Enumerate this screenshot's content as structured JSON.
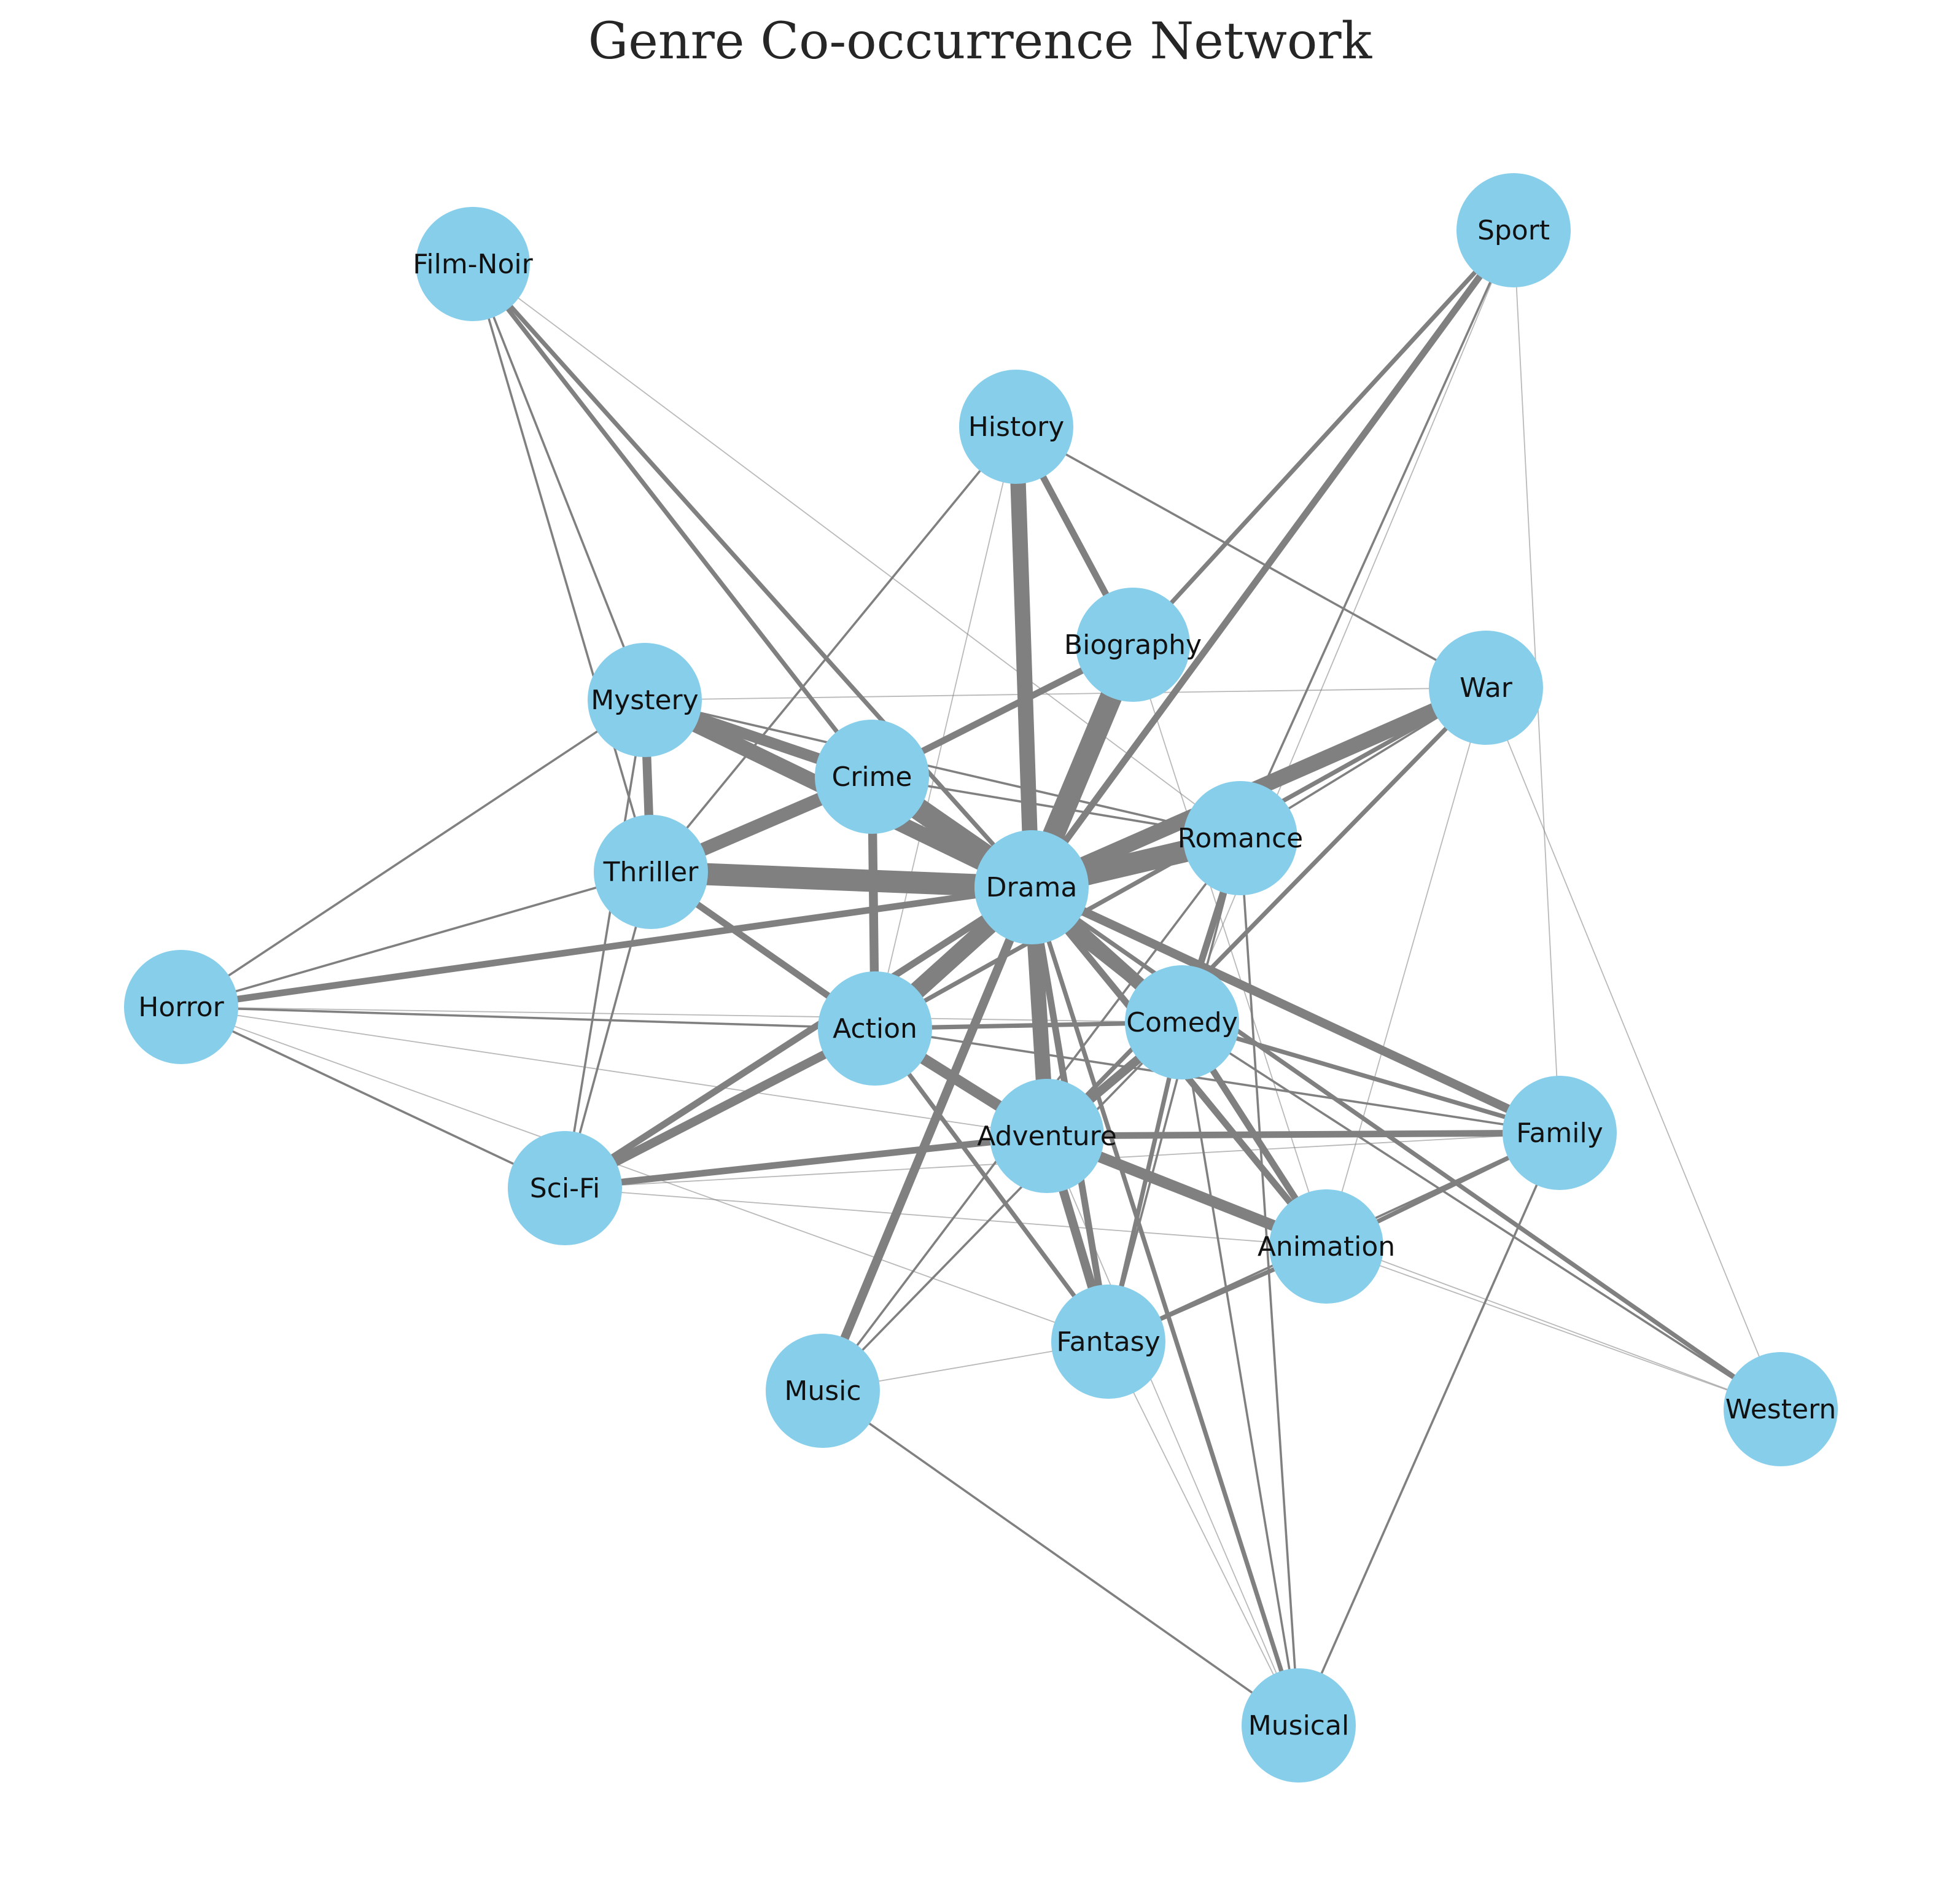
{
  "title": "Genre Co-occurrence Network",
  "colors": {
    "node_fill": "#87ceeb",
    "edge_stroke": "#808080",
    "background": "#ffffff"
  },
  "nodes": [
    {
      "id": "Film-Noir",
      "label": "Film-Noir"
    },
    {
      "id": "Sport",
      "label": "Sport"
    },
    {
      "id": "History",
      "label": "History"
    },
    {
      "id": "Biography",
      "label": "Biography"
    },
    {
      "id": "War",
      "label": "War"
    },
    {
      "id": "Mystery",
      "label": "Mystery"
    },
    {
      "id": "Crime",
      "label": "Crime"
    },
    {
      "id": "Romance",
      "label": "Romance"
    },
    {
      "id": "Thriller",
      "label": "Thriller"
    },
    {
      "id": "Drama",
      "label": "Drama"
    },
    {
      "id": "Horror",
      "label": "Horror"
    },
    {
      "id": "Action",
      "label": "Action"
    },
    {
      "id": "Comedy",
      "label": "Comedy"
    },
    {
      "id": "Family",
      "label": "Family"
    },
    {
      "id": "Adventure",
      "label": "Adventure"
    },
    {
      "id": "Sci-Fi",
      "label": "Sci-Fi"
    },
    {
      "id": "Animation",
      "label": "Animation"
    },
    {
      "id": "Fantasy",
      "label": "Fantasy"
    },
    {
      "id": "Music",
      "label": "Music"
    },
    {
      "id": "Western",
      "label": "Western"
    },
    {
      "id": "Musical",
      "label": "Musical"
    }
  ],
  "edges": [
    {
      "source": "Drama",
      "target": "Romance",
      "weight": 10
    },
    {
      "source": "Drama",
      "target": "Crime",
      "weight": 10
    },
    {
      "source": "Drama",
      "target": "Thriller",
      "weight": 10
    },
    {
      "source": "Drama",
      "target": "Biography",
      "weight": 10
    },
    {
      "source": "Drama",
      "target": "Action",
      "weight": 8
    },
    {
      "source": "Drama",
      "target": "Adventure",
      "weight": 7
    },
    {
      "source": "Drama",
      "target": "History",
      "weight": 7
    },
    {
      "source": "Drama",
      "target": "War",
      "weight": 7
    },
    {
      "source": "Drama",
      "target": "Mystery",
      "weight": 7
    },
    {
      "source": "Drama",
      "target": "Comedy",
      "weight": 6
    },
    {
      "source": "Drama",
      "target": "Family",
      "weight": 4
    },
    {
      "source": "Drama",
      "target": "Music",
      "weight": 4
    },
    {
      "source": "Drama",
      "target": "Horror",
      "weight": 3
    },
    {
      "source": "Drama",
      "target": "Sport",
      "weight": 3
    },
    {
      "source": "Drama",
      "target": "Fantasy",
      "weight": 3
    },
    {
      "source": "Drama",
      "target": "Animation",
      "weight": 3
    },
    {
      "source": "Drama",
      "target": "Sci-Fi",
      "weight": 3
    },
    {
      "source": "Drama",
      "target": "Film-Noir",
      "weight": 2
    },
    {
      "source": "Drama",
      "target": "Western",
      "weight": 2
    },
    {
      "source": "Drama",
      "target": "Musical",
      "weight": 2
    },
    {
      "source": "Crime",
      "target": "Thriller",
      "weight": 6
    },
    {
      "source": "Crime",
      "target": "Mystery",
      "weight": 5
    },
    {
      "source": "Crime",
      "target": "Action",
      "weight": 4
    },
    {
      "source": "Crime",
      "target": "Biography",
      "weight": 3
    },
    {
      "source": "Crime",
      "target": "Film-Noir",
      "weight": 2
    },
    {
      "source": "Crime",
      "target": "Comedy",
      "weight": 2
    },
    {
      "source": "Crime",
      "target": "Romance",
      "weight": 1
    },
    {
      "source": "Mystery",
      "target": "Thriller",
      "weight": 4
    },
    {
      "source": "Mystery",
      "target": "Romance",
      "weight": 1
    },
    {
      "source": "Mystery",
      "target": "Horror",
      "weight": 1
    },
    {
      "source": "Mystery",
      "target": "Sci-Fi",
      "weight": 1
    },
    {
      "source": "Mystery",
      "target": "Film-Noir",
      "weight": 1
    },
    {
      "source": "Mystery",
      "target": "War",
      "weight": 0.5
    },
    {
      "source": "Thriller",
      "target": "Action",
      "weight": 3
    },
    {
      "source": "Thriller",
      "target": "Horror",
      "weight": 1
    },
    {
      "source": "Thriller",
      "target": "Sci-Fi",
      "weight": 1
    },
    {
      "source": "Thriller",
      "target": "Film-Noir",
      "weight": 1
    },
    {
      "source": "Action",
      "target": "Adventure",
      "weight": 5
    },
    {
      "source": "Action",
      "target": "Sci-Fi",
      "weight": 4
    },
    {
      "source": "Action",
      "target": "Comedy",
      "weight": 2
    },
    {
      "source": "Action",
      "target": "War",
      "weight": 2
    },
    {
      "source": "Action",
      "target": "Fantasy",
      "weight": 2
    },
    {
      "source": "Action",
      "target": "Family",
      "weight": 1
    },
    {
      "source": "Action",
      "target": "Horror",
      "weight": 1
    },
    {
      "source": "Adventure",
      "target": "Animation",
      "weight": 5
    },
    {
      "source": "Adventure",
      "target": "Comedy",
      "weight": 4
    },
    {
      "source": "Adventure",
      "target": "Fantasy",
      "weight": 4
    },
    {
      "source": "Adventure",
      "target": "Family",
      "weight": 3
    },
    {
      "source": "Adventure",
      "target": "Sci-Fi",
      "weight": 3
    },
    {
      "source": "Adventure",
      "target": "War",
      "weight": 2
    },
    {
      "source": "Comedy",
      "target": "Romance",
      "weight": 3
    },
    {
      "source": "Comedy",
      "target": "Animation",
      "weight": 3
    },
    {
      "source": "Comedy",
      "target": "Family",
      "weight": 2
    },
    {
      "source": "Comedy",
      "target": "Fantasy",
      "weight": 2
    },
    {
      "source": "Comedy",
      "target": "Musical",
      "weight": 1
    },
    {
      "source": "Comedy",
      "target": "Western",
      "weight": 1
    },
    {
      "source": "Comedy",
      "target": "Music",
      "weight": 1
    },
    {
      "source": "Biography",
      "target": "History",
      "weight": 3
    },
    {
      "source": "Biography",
      "target": "Sport",
      "weight": 2
    },
    {
      "source": "Biography",
      "target": "Music",
      "weight": 1
    },
    {
      "source": "Biography",
      "target": "Animation",
      "weight": 0.5
    },
    {
      "source": "History",
      "target": "War",
      "weight": 1
    },
    {
      "source": "History",
      "target": "Thriller",
      "weight": 1
    },
    {
      "source": "History",
      "target": "Action",
      "weight": 0.5
    },
    {
      "source": "Romance",
      "target": "War",
      "weight": 1
    },
    {
      "source": "Romance",
      "target": "Music",
      "weight": 1
    },
    {
      "source": "Romance",
      "target": "Fantasy",
      "weight": 1
    },
    {
      "source": "Romance",
      "target": "Musical",
      "weight": 1
    },
    {
      "source": "Romance",
      "target": "Sport",
      "weight": 1
    },
    {
      "source": "Animation",
      "target": "Family",
      "weight": 2
    },
    {
      "source": "Animation",
      "target": "Fantasy",
      "weight": 2
    },
    {
      "source": "Animation",
      "target": "Western",
      "weight": 0.5
    },
    {
      "source": "Family",
      "target": "Fantasy",
      "weight": 1
    },
    {
      "source": "Family",
      "target": "Musical",
      "weight": 1
    },
    {
      "source": "Family",
      "target": "Sport",
      "weight": 0.5
    },
    {
      "source": "Sci-Fi",
      "target": "Horror",
      "weight": 1
    },
    {
      "source": "Sci-Fi",
      "target": "Family",
      "weight": 0.5
    },
    {
      "source": "Sci-Fi",
      "target": "Animation",
      "weight": 0.5
    },
    {
      "source": "Horror",
      "target": "Comedy",
      "weight": 0.5
    },
    {
      "source": "Horror",
      "target": "Fantasy",
      "weight": 0.5
    },
    {
      "source": "Horror",
      "target": "Adventure",
      "weight": 0.5
    },
    {
      "source": "Music",
      "target": "Musical",
      "weight": 1
    },
    {
      "source": "Music",
      "target": "Fantasy",
      "weight": 0.5
    },
    {
      "source": "Fantasy",
      "target": "Musical",
      "weight": 0.5
    },
    {
      "source": "Film-Noir",
      "target": "Romance",
      "weight": 0.5
    },
    {
      "source": "Western",
      "target": "War",
      "weight": 0.5
    },
    {
      "source": "Western",
      "target": "Adventure",
      "weight": 0.5
    },
    {
      "source": "Sport",
      "target": "Comedy",
      "weight": 0.5
    },
    {
      "source": "War",
      "target": "Animation",
      "weight": 0.5
    },
    {
      "source": "Musical",
      "target": "Adventure",
      "weight": 0.5
    }
  ]
}
